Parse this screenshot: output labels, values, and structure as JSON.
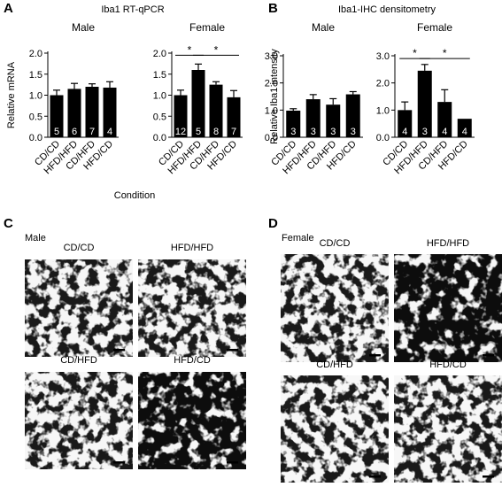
{
  "panels": {
    "A": {
      "letter": "A",
      "title": "Iba1 RT-qPCR"
    },
    "B": {
      "letter": "B",
      "title": "Iba1-IHC densitometry"
    },
    "C": {
      "letter": "C",
      "sex": "Male",
      "images": [
        "CD/CD",
        "HFD/HFD",
        "CD/HFD",
        "HFD/CD"
      ]
    },
    "D": {
      "letter": "D",
      "sex": "Female",
      "images": [
        "CD/CD",
        "HFD/HFD",
        "CD/HFD",
        "HFD/CD"
      ]
    }
  },
  "chart_data": [
    {
      "type": "bar",
      "panel": "A",
      "title": "Male",
      "categories": [
        "CD/CD",
        "HFD/HFD",
        "CD/HFD",
        "HFD/CD"
      ],
      "values": [
        1.0,
        1.15,
        1.2,
        1.18
      ],
      "errors": [
        0.12,
        0.13,
        0.07,
        0.14
      ],
      "n": [
        "5",
        "6",
        "7",
        "4"
      ],
      "ylabel": "Relative mRNA",
      "xlabel": "Condition",
      "ylim": [
        0,
        2.0
      ],
      "yticks": [
        "0.0",
        "0.5",
        "1.0",
        "1.5",
        "2.0"
      ],
      "significance": []
    },
    {
      "type": "bar",
      "panel": "A",
      "title": "Female",
      "categories": [
        "CD/CD",
        "HFD/HFD",
        "CD/HFD",
        "HFD/CD"
      ],
      "values": [
        1.0,
        1.6,
        1.25,
        0.95
      ],
      "errors": [
        0.12,
        0.14,
        0.07,
        0.16
      ],
      "n": [
        "12",
        "5",
        "8",
        "7"
      ],
      "ylabel": "",
      "xlabel": "",
      "ylim": [
        0,
        2.0
      ],
      "yticks": [
        "0.0",
        "0.5",
        "1.0",
        "1.5",
        "2.0"
      ],
      "significance": [
        {
          "from": 0,
          "to": 1,
          "y": 1.95,
          "label": "*"
        },
        {
          "from": 1,
          "to": 3,
          "y": 1.95,
          "label": "*"
        }
      ]
    },
    {
      "type": "bar",
      "panel": "B",
      "title": "Male",
      "categories": [
        "CD/CD",
        "HFD/HFD",
        "CD/HFD",
        "HFD/CD"
      ],
      "values": [
        0.98,
        1.4,
        1.2,
        1.58
      ],
      "errors": [
        0.07,
        0.17,
        0.22,
        0.1
      ],
      "n": [
        "3",
        "3",
        "3",
        "3"
      ],
      "ylabel": "Relative Iba1 intensity",
      "xlabel": "",
      "ylim": [
        0,
        3.0
      ],
      "yticks": [
        "0.0",
        "1.0",
        "2.0",
        "3.0"
      ],
      "significance": []
    },
    {
      "type": "bar",
      "panel": "B",
      "title": "Female",
      "categories": [
        "CD/CD",
        "HFD/HFD",
        "CD/HFD",
        "HFD/CD"
      ],
      "values": [
        1.0,
        2.45,
        1.3,
        0.68
      ],
      "errors": [
        0.3,
        0.23,
        0.45,
        0.0
      ],
      "n": [
        "4",
        "3",
        "4",
        "4"
      ],
      "ylabel": "",
      "xlabel": "",
      "ylim": [
        0,
        3.0
      ],
      "yticks": [
        "0.0",
        "1.0",
        "2.0",
        "3.0"
      ],
      "significance": [
        {
          "from": 0,
          "to": 1,
          "y": 2.9,
          "label": "*"
        },
        {
          "from": 1,
          "to": 3,
          "y": 2.9,
          "label": "*"
        }
      ]
    }
  ]
}
